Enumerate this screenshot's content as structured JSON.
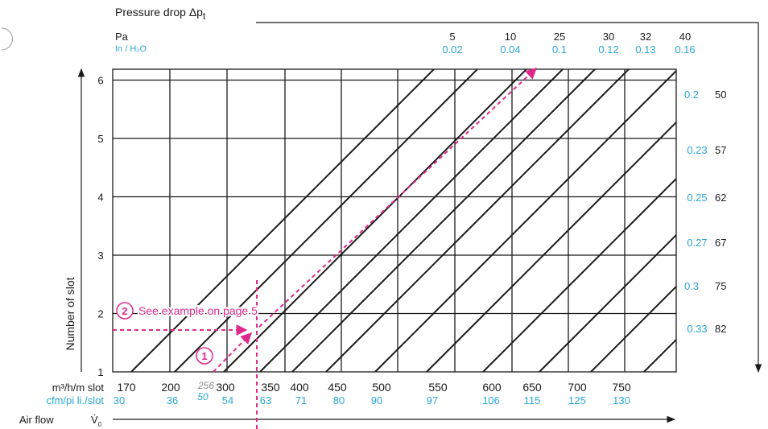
{
  "chart_data": {
    "type": "line",
    "title": "Pressure drop Δp",
    "title_subscript": "t",
    "top_axis": {
      "unit_pa": "Pa",
      "unit_inh2o": "In / H₂O",
      "pa_values": [
        "5",
        "10",
        "25",
        "30",
        "32",
        "40"
      ],
      "inh2o_values": [
        "0.02",
        "0.04",
        "0.1",
        "0.12",
        "0.13",
        "0.16"
      ]
    },
    "right_axis": {
      "pa_values": [
        "50",
        "57",
        "62",
        "67",
        "75",
        "82"
      ],
      "inh2o_values": [
        "0.2",
        "0.23",
        "0.25",
        "0.27",
        "0.3",
        "0.33"
      ]
    },
    "y_axis": {
      "label": "Number of slot",
      "ticks": [
        "1",
        "2",
        "3",
        "4",
        "5",
        "6"
      ],
      "ylim": [
        1,
        6.75
      ]
    },
    "x_axis": {
      "label": "Air flow",
      "symbol": "V̇",
      "symbol_subscript": "0",
      "unit_metric": "m³/h/m slot",
      "unit_imperial": "cfm/pi li./slot",
      "metric_ticks": [
        "170",
        "200",
        "300",
        "350",
        "400",
        "450",
        "500",
        "550",
        "600",
        "650",
        "700",
        "750"
      ],
      "imperial_ticks": [
        "30",
        "36",
        "54",
        "63",
        "71",
        "80",
        "90",
        "97",
        "106",
        "115",
        "125",
        "130"
      ],
      "xlim": [
        170,
        850
      ]
    },
    "example": {
      "label": "See example on page 5",
      "step1_marker": "1",
      "step2_marker": "2",
      "flow_metric": "256",
      "flow_imperial": "50",
      "slots": 2
    },
    "colors": {
      "grid": "#1a1a1a",
      "blue_text": "#2aa7d8",
      "example": "#e0288a",
      "gray_text": "#888888"
    }
  }
}
